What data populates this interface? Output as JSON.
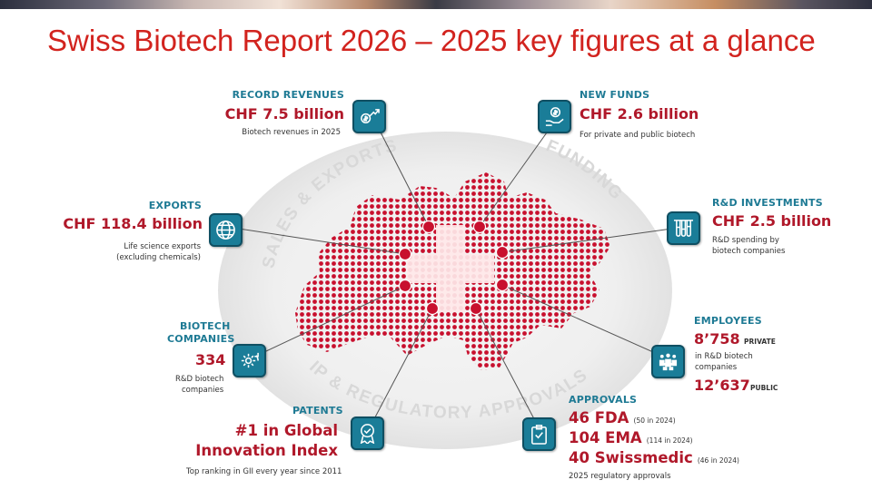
{
  "title": "Swiss Biotech Report 2026 – 2025 key figures at a glance",
  "arc_labels": {
    "sales": "SALES & EXPORTS",
    "funding": "FUNDING",
    "ip": "IP & REGULATORY APPROVALS"
  },
  "revenues": {
    "heading": "RECORD REVENUES",
    "value": "CHF 7.5 billion",
    "caption": "Biotech revenues in 2025",
    "icon": "rising-chart-money-icon"
  },
  "funds": {
    "heading": "NEW FUNDS",
    "value": "CHF 2.6 billion",
    "caption": "For private and public biotech",
    "icon": "hand-money-icon"
  },
  "exports": {
    "heading": "EXPORTS",
    "value": "CHF 118.4 billion",
    "caption_1": "Life science exports",
    "caption_2": "(excluding chemicals)",
    "icon": "globe-icon"
  },
  "rnd": {
    "heading": "R&D INVESTMENTS",
    "value": "CHF 2.5 billion",
    "caption_1": "R&D spending by",
    "caption_2": "biotech companies",
    "icon": "test-tubes-icon"
  },
  "companies": {
    "heading_1": "BIOTECH",
    "heading_2": "COMPANIES",
    "value": "334",
    "caption_1": "R&D biotech",
    "caption_2": "companies",
    "icon": "gear-cycle-icon"
  },
  "employees": {
    "heading": "EMPLOYEES",
    "private_value": "8’758",
    "private_label": "PRIVATE",
    "caption_1": "in R&D biotech",
    "caption_2": "companies",
    "public_value": "12’637",
    "public_label": "PUBLIC",
    "icon": "people-group-icon"
  },
  "patents": {
    "heading": "PATENTS",
    "value_1": "#1 in Global",
    "value_2": "Innovation Index",
    "caption": "Top ranking in GII every year since 2011",
    "icon": "award-badge-icon"
  },
  "approvals": {
    "heading": "APPROVALS",
    "lines": [
      {
        "value": "46 FDA",
        "note": "(50 in 2024)"
      },
      {
        "value": "104 EMA",
        "note": "(114 in 2024)"
      },
      {
        "value": "40 Swissmedic",
        "note": "(46 in 2024)"
      }
    ],
    "caption": "2025 regulatory approvals",
    "icon": "clipboard-check-icon"
  },
  "colors": {
    "title": "#d2231e",
    "heading": "#1e7a94",
    "value": "#b0182a",
    "icon_box": "#1a7d98",
    "dot": "#c8102e"
  }
}
